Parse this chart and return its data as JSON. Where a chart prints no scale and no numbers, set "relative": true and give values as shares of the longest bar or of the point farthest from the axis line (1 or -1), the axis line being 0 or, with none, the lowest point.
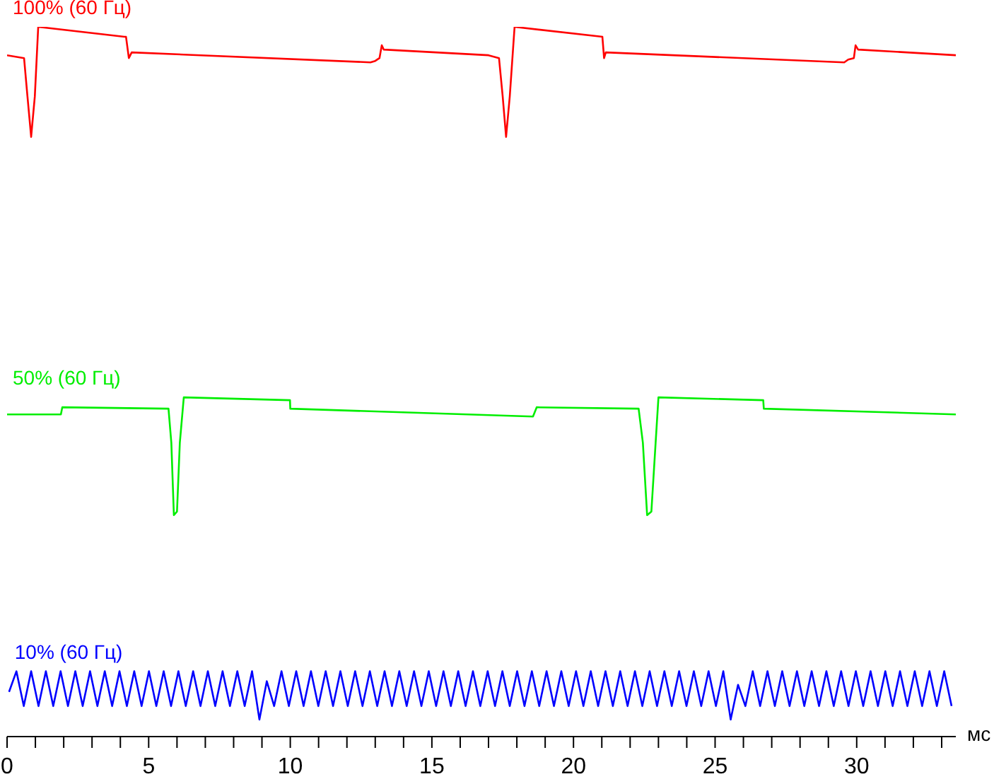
{
  "chart_data": {
    "type": "line",
    "relative": true,
    "xlabel": "мс",
    "xlim": [
      0,
      33.5
    ],
    "xticks": [
      0,
      {
        "value": 1,
        "label": null
      },
      {
        "value": 2,
        "label": null
      },
      {
        "value": 3,
        "label": null
      },
      {
        "value": 4,
        "label": null
      },
      5,
      {
        "value": 6,
        "label": null
      },
      {
        "value": 7,
        "label": null
      },
      {
        "value": 8,
        "label": null
      },
      {
        "value": 9,
        "label": null
      },
      10,
      {
        "value": 11,
        "label": null
      },
      {
        "value": 12,
        "label": null
      },
      {
        "value": 13,
        "label": null
      },
      {
        "value": 14,
        "label": null
      },
      15,
      {
        "value": 16,
        "label": null
      },
      {
        "value": 17,
        "label": null
      },
      {
        "value": 18,
        "label": null
      },
      {
        "value": 19,
        "label": null
      },
      20,
      {
        "value": 21,
        "label": null
      },
      {
        "value": 22,
        "label": null
      },
      {
        "value": 23,
        "label": null
      },
      {
        "value": 24,
        "label": null
      },
      25,
      {
        "value": 26,
        "label": null
      },
      {
        "value": 27,
        "label": null
      },
      {
        "value": 28,
        "label": null
      },
      {
        "value": 29,
        "label": null
      },
      30,
      {
        "value": 31,
        "label": null
      },
      {
        "value": 32,
        "label": null
      },
      {
        "value": 33,
        "label": null
      }
    ],
    "marker": "none",
    "line_style": "solid",
    "series": [
      {
        "name": "100% (60 Гц)",
        "color": "#ff0000",
        "x": [
          0,
          0.6,
          0.72,
          0.85,
          0.98,
          1.1,
          4.14,
          4.2,
          4.3,
          4.4,
          12.83,
          13.0,
          13.15,
          13.23,
          13.3,
          17.0,
          17.37,
          17.5,
          17.62,
          17.75,
          17.92,
          21.02,
          21.08,
          21.14,
          29.56,
          29.7,
          29.9,
          29.96,
          30.05,
          33.5
        ],
        "values": [
          0.96,
          0.956,
          0.902,
          0.845,
          0.902,
          1,
          0.986,
          0.986,
          0.956,
          0.964,
          0.95,
          0.952,
          0.956,
          0.974,
          0.968,
          0.96,
          0.956,
          0.902,
          0.845,
          0.902,
          1,
          0.986,
          0.956,
          0.964,
          0.95,
          0.954,
          0.956,
          0.974,
          0.968,
          0.96
        ]
      },
      {
        "name": "50% (60 Гц)",
        "color": "#00ee00",
        "x": [
          0,
          1.9,
          1.95,
          5.7,
          5.8,
          5.89,
          6.0,
          6.1,
          6.24,
          9.99,
          10.0,
          18.57,
          18.7,
          22.3,
          22.45,
          22.6,
          22.75,
          22.9,
          23.0,
          26.7,
          26.72,
          33.5
        ],
        "values": [
          0.454,
          0.454,
          0.464,
          0.462,
          0.414,
          0.312,
          0.317,
          0.414,
          0.478,
          0.474,
          0.462,
          0.451,
          0.464,
          0.462,
          0.414,
          0.312,
          0.317,
          0.414,
          0.478,
          0.474,
          0.462,
          0.454
        ]
      },
      {
        "name": "10% (60 Гц)",
        "color": "#0000ff",
        "x": [
          0.07,
          0.33,
          0.59,
          0.85,
          1.11,
          1.37,
          1.63,
          1.89,
          2.15,
          2.41,
          2.67,
          2.93,
          3.19,
          3.45,
          3.71,
          3.97,
          4.23,
          4.49,
          4.75,
          5.01,
          5.27,
          5.53,
          5.79,
          6.05,
          6.31,
          6.57,
          6.83,
          7.09,
          7.35,
          7.61,
          7.87,
          8.13,
          8.39,
          8.65,
          8.91,
          9.17,
          9.43,
          9.69,
          9.95,
          10.21,
          10.47,
          10.73,
          10.99,
          11.25,
          11.51,
          11.77,
          12.03,
          12.29,
          12.55,
          12.81,
          13.07,
          13.33,
          13.59,
          13.85,
          14.11,
          14.37,
          14.63,
          14.89,
          15.15,
          15.41,
          15.67,
          15.93,
          16.19,
          16.45,
          16.71,
          16.97,
          17.23,
          17.49,
          17.75,
          18.01,
          18.27,
          18.53,
          18.79,
          19.05,
          19.31,
          19.57,
          19.83,
          20.09,
          20.35,
          20.61,
          20.87,
          21.13,
          21.39,
          21.65,
          21.91,
          22.17,
          22.43,
          22.69,
          22.95,
          23.21,
          23.47,
          23.73,
          23.99,
          24.25,
          24.51,
          24.77,
          25.03,
          25.29,
          25.55,
          25.81,
          26.07,
          26.33,
          26.59,
          26.85,
          27.11,
          27.37,
          27.63,
          27.89,
          28.15,
          28.41,
          28.67,
          28.93,
          29.19,
          29.45,
          29.71,
          29.97,
          30.23,
          30.49,
          30.75,
          31.01,
          31.27,
          31.53,
          31.79,
          32.05,
          32.31,
          32.57,
          32.83,
          33.09,
          33.35
        ],
        "values": [
          0.063,
          0.092,
          0.043,
          0.092,
          0.043,
          0.092,
          0.043,
          0.092,
          0.043,
          0.092,
          0.043,
          0.092,
          0.043,
          0.092,
          0.043,
          0.092,
          0.043,
          0.092,
          0.043,
          0.092,
          0.043,
          0.092,
          0.043,
          0.092,
          0.043,
          0.092,
          0.043,
          0.092,
          0.043,
          0.092,
          0.043,
          0.092,
          0.043,
          0.092,
          0.024,
          0.078,
          0.043,
          0.092,
          0.043,
          0.092,
          0.043,
          0.092,
          0.043,
          0.092,
          0.043,
          0.092,
          0.043,
          0.092,
          0.043,
          0.092,
          0.043,
          0.092,
          0.043,
          0.092,
          0.043,
          0.092,
          0.043,
          0.092,
          0.043,
          0.092,
          0.043,
          0.092,
          0.043,
          0.092,
          0.043,
          0.092,
          0.043,
          0.092,
          0.043,
          0.092,
          0.043,
          0.092,
          0.043,
          0.092,
          0.043,
          0.092,
          0.043,
          0.092,
          0.043,
          0.092,
          0.043,
          0.092,
          0.043,
          0.092,
          0.043,
          0.092,
          0.043,
          0.092,
          0.043,
          0.092,
          0.043,
          0.092,
          0.043,
          0.092,
          0.043,
          0.092,
          0.043,
          0.092,
          0.024,
          0.073,
          0.043,
          0.092,
          0.043,
          0.092,
          0.043,
          0.092,
          0.043,
          0.092,
          0.043,
          0.092,
          0.043,
          0.092,
          0.043,
          0.092,
          0.043,
          0.092,
          0.043,
          0.092,
          0.043,
          0.092,
          0.043,
          0.092,
          0.043,
          0.092,
          0.043,
          0.092,
          0.043,
          0.092,
          0.043
        ]
      }
    ]
  }
}
